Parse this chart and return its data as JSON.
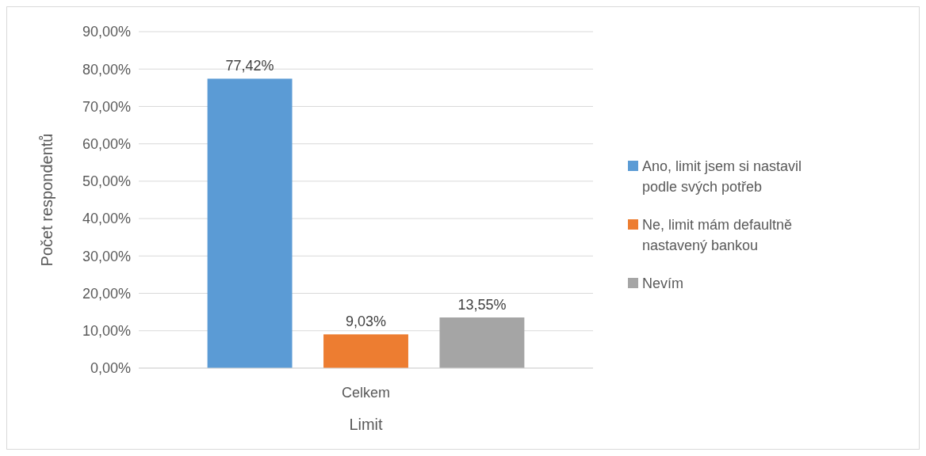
{
  "chart_data": {
    "type": "bar",
    "xlabel": "Limit",
    "ylabel": "Počet respondentů",
    "categories": [
      "Celkem"
    ],
    "series": [
      {
        "name": "Ano, limit jsem si nastavil podle svých potřeb",
        "color": "#5b9bd5",
        "values": [
          77.42
        ],
        "value_labels": [
          "77,42%"
        ]
      },
      {
        "name": "Ne, limit mám defaultně nastavený bankou",
        "color": "#ed7d31",
        "values": [
          9.03
        ],
        "value_labels": [
          "9,03%"
        ]
      },
      {
        "name": "Nevím",
        "color": "#a5a5a5",
        "values": [
          13.55
        ],
        "value_labels": [
          "13,55%"
        ]
      }
    ],
    "ylim": [
      0,
      90
    ],
    "yticks": [
      {
        "value": 0,
        "label": "0,00%"
      },
      {
        "value": 10,
        "label": "10,00%"
      },
      {
        "value": 20,
        "label": "20,00%"
      },
      {
        "value": 30,
        "label": "30,00%"
      },
      {
        "value": 40,
        "label": "40,00%"
      },
      {
        "value": 50,
        "label": "50,00%"
      },
      {
        "value": 60,
        "label": "60,00%"
      },
      {
        "value": 70,
        "label": "70,00%"
      },
      {
        "value": 80,
        "label": "80,00%"
      },
      {
        "value": 90,
        "label": "90,00%"
      }
    ],
    "grid": "y",
    "legend": "right"
  }
}
